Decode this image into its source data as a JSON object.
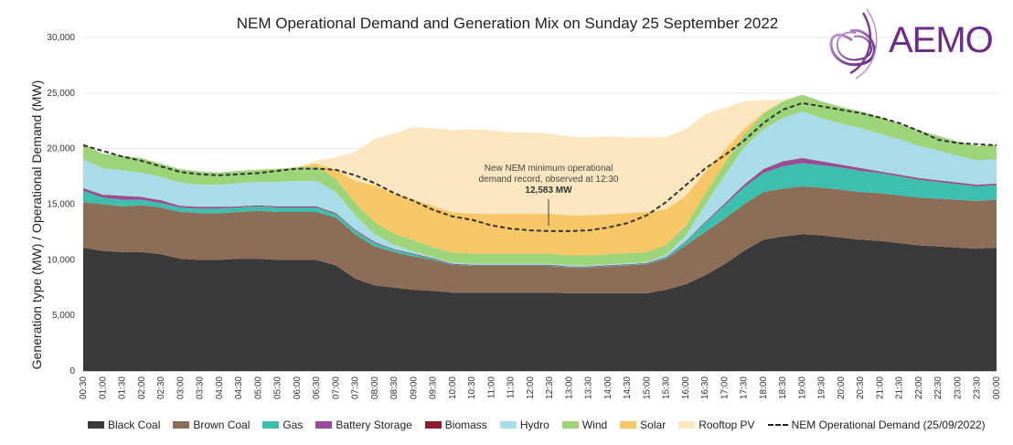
{
  "chart_data": {
    "type": "area",
    "title": "NEM Operational Demand and Generation Mix on Sunday 25 September 2022",
    "ylabel": "Generation type (MW) / Operational Demand (MW)",
    "xlabel": "",
    "ylim": [
      0,
      30000
    ],
    "yticks": [
      0,
      5000,
      10000,
      15000,
      20000,
      25000,
      30000
    ],
    "ytick_labels": [
      "0",
      "5,000",
      "10,000",
      "15,000",
      "20,000",
      "25,000",
      "30,000"
    ],
    "categories": [
      "00:30",
      "01:00",
      "01:30",
      "02:00",
      "02:30",
      "03:00",
      "03:30",
      "04:00",
      "04:30",
      "05:00",
      "05:30",
      "06:00",
      "06:30",
      "07:00",
      "07:30",
      "08:00",
      "08:30",
      "09:00",
      "09:30",
      "10:00",
      "10:30",
      "11:00",
      "11:30",
      "12:00",
      "12:30",
      "13:00",
      "13:30",
      "14:00",
      "14:30",
      "15:00",
      "15:30",
      "16:00",
      "16:30",
      "17:00",
      "17:30",
      "18:00",
      "18:30",
      "19:00",
      "19:30",
      "20:00",
      "20:30",
      "21:00",
      "21:30",
      "22:00",
      "22:30",
      "23:00",
      "23:30",
      "00:00"
    ],
    "series": [
      {
        "name": "Black Coal",
        "color": "#3a3a3a",
        "values": [
          11100,
          10800,
          10700,
          10700,
          10500,
          10100,
          10000,
          10000,
          10100,
          10100,
          10000,
          10000,
          10000,
          9500,
          8300,
          7700,
          7500,
          7300,
          7200,
          7050,
          7050,
          7050,
          7050,
          7050,
          7050,
          7000,
          7000,
          7000,
          7000,
          7000,
          7300,
          7800,
          8600,
          9600,
          10800,
          11800,
          12100,
          12300,
          12200,
          12000,
          11800,
          11700,
          11500,
          11300,
          11200,
          11100,
          11000,
          11100
        ]
      },
      {
        "name": "Brown Coal",
        "color": "#8c6d58",
        "values": [
          4100,
          4200,
          4100,
          4200,
          4200,
          4200,
          4200,
          4200,
          4200,
          4300,
          4300,
          4300,
          4300,
          4300,
          4000,
          3500,
          3200,
          3000,
          2800,
          2500,
          2400,
          2400,
          2400,
          2400,
          2400,
          2300,
          2300,
          2400,
          2500,
          2600,
          2800,
          3500,
          3900,
          4100,
          4200,
          4300,
          4300,
          4300,
          4300,
          4300,
          4300,
          4300,
          4300,
          4300,
          4300,
          4300,
          4300,
          4300
        ]
      },
      {
        "name": "Gas",
        "color": "#3dbfae",
        "values": [
          1000,
          600,
          600,
          500,
          400,
          400,
          400,
          400,
          400,
          400,
          400,
          400,
          400,
          300,
          300,
          300,
          200,
          200,
          100,
          50,
          50,
          50,
          50,
          50,
          50,
          50,
          50,
          50,
          50,
          50,
          100,
          300,
          800,
          1200,
          1500,
          1700,
          2000,
          2100,
          2000,
          2000,
          1900,
          1800,
          1700,
          1600,
          1500,
          1400,
          1300,
          1300
        ]
      },
      {
        "name": "Battery Storage",
        "color": "#9a4a9a",
        "values": [
          200,
          200,
          300,
          200,
          200,
          100,
          100,
          100,
          50,
          50,
          50,
          50,
          50,
          50,
          50,
          50,
          0,
          0,
          0,
          0,
          0,
          0,
          0,
          0,
          0,
          0,
          0,
          0,
          0,
          0,
          0,
          0,
          50,
          100,
          200,
          300,
          400,
          400,
          300,
          200,
          200,
          100,
          100,
          100,
          100,
          100,
          100,
          100
        ]
      },
      {
        "name": "Biomass",
        "color": "#8e1c2c",
        "values": [
          50,
          50,
          50,
          50,
          50,
          50,
          50,
          50,
          50,
          50,
          50,
          50,
          50,
          50,
          50,
          50,
          50,
          50,
          50,
          50,
          50,
          50,
          50,
          50,
          50,
          50,
          50,
          50,
          50,
          50,
          50,
          50,
          50,
          50,
          50,
          50,
          50,
          50,
          50,
          50,
          50,
          50,
          50,
          50,
          50,
          50,
          50,
          50
        ]
      },
      {
        "name": "Hydro",
        "color": "#a8dce9",
        "values": [
          2600,
          2400,
          2300,
          2200,
          2100,
          2100,
          2000,
          2000,
          2100,
          2100,
          2200,
          2300,
          2300,
          1900,
          1300,
          700,
          400,
          200,
          100,
          100,
          100,
          100,
          100,
          100,
          100,
          100,
          100,
          100,
          100,
          100,
          200,
          500,
          1500,
          2500,
          3300,
          3600,
          3900,
          4200,
          3900,
          3700,
          3600,
          3400,
          3200,
          2900,
          2700,
          2400,
          2200,
          2200
        ]
      },
      {
        "name": "Wind",
        "color": "#9dd47a",
        "values": [
          1400,
          1300,
          1300,
          1300,
          1200,
          1200,
          1200,
          1100,
          1100,
          1100,
          1200,
          1200,
          1300,
          1200,
          1100,
          1100,
          1000,
          1000,
          900,
          900,
          900,
          900,
          900,
          900,
          900,
          900,
          900,
          900,
          900,
          900,
          900,
          900,
          1000,
          1100,
          1200,
          1400,
          1500,
          1500,
          1500,
          1500,
          1500,
          1500,
          1400,
          1400,
          1300,
          1300,
          1300,
          1300
        ]
      },
      {
        "name": "Solar",
        "color": "#f7c767",
        "values": [
          0,
          0,
          0,
          0,
          0,
          0,
          0,
          0,
          0,
          0,
          0,
          50,
          250,
          800,
          2000,
          3300,
          3600,
          3700,
          3700,
          3600,
          3600,
          3600,
          3600,
          3600,
          3600,
          3600,
          3600,
          3600,
          3600,
          3600,
          3200,
          2700,
          2000,
          1200,
          500,
          100,
          0,
          0,
          0,
          0,
          0,
          0,
          0,
          0,
          0,
          0,
          0,
          0
        ]
      },
      {
        "name": "Rooftop PV",
        "color": "#fbe6bf",
        "values": [
          0,
          0,
          0,
          0,
          0,
          0,
          0,
          0,
          0,
          0,
          0,
          0,
          300,
          1100,
          2600,
          4200,
          5400,
          6500,
          7000,
          7400,
          7600,
          7500,
          7300,
          7300,
          7200,
          7100,
          7000,
          7000,
          6800,
          6700,
          6500,
          6000,
          5200,
          3800,
          2500,
          1100,
          200,
          0,
          0,
          0,
          0,
          0,
          0,
          0,
          0,
          0,
          0,
          0
        ]
      }
    ],
    "demand_line": {
      "name": "NEM Operational Demand (25/09/2022)",
      "color": "#333333",
      "values": [
        20300,
        19800,
        19300,
        18900,
        18400,
        17900,
        17700,
        17600,
        17700,
        17800,
        18000,
        18200,
        18200,
        18100,
        17600,
        16900,
        16000,
        15300,
        14500,
        13900,
        13600,
        13100,
        12800,
        12650,
        12583,
        12583,
        12650,
        12900,
        13300,
        14000,
        15200,
        16700,
        18200,
        19400,
        20700,
        22300,
        23500,
        24100,
        23800,
        23500,
        23200,
        22800,
        22300,
        21600,
        20800,
        20500,
        20400,
        20300
      ]
    },
    "annotation": {
      "line1": "New NEM minimum operational",
      "line2": "demand record, observed at 12:30",
      "value": "12,583 MW",
      "x": "12:30",
      "y": 12583
    },
    "legend_position": "bottom"
  },
  "logo": {
    "text": "AEMO"
  }
}
